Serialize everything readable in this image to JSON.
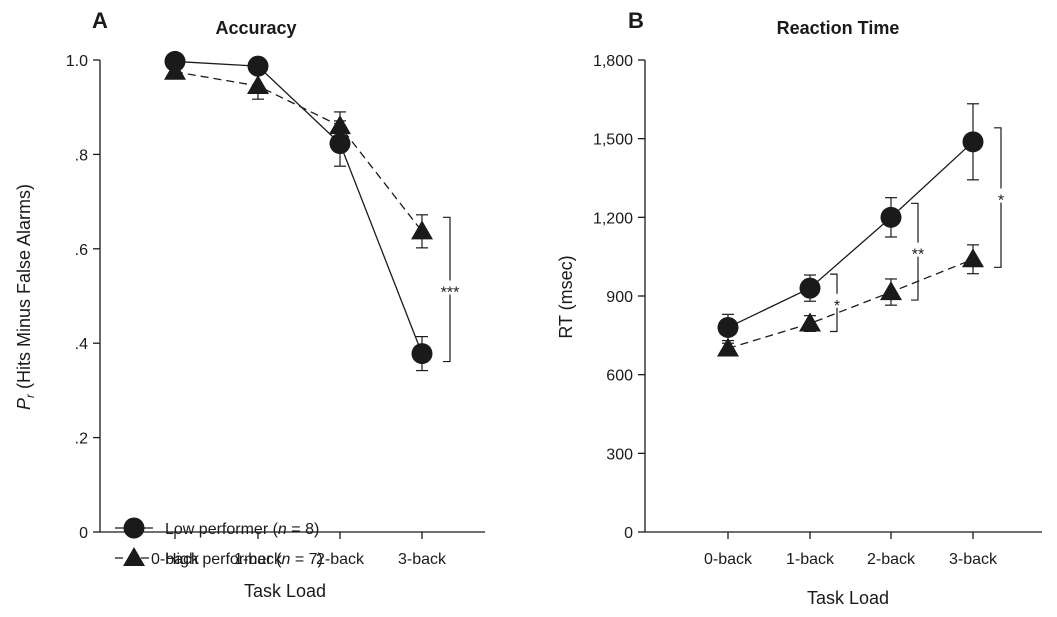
{
  "chart_data": [
    {
      "type": "line",
      "panel_label": "A",
      "title": "Accuracy",
      "xlabel": "Task Load",
      "ylabel_prefix": "P",
      "ylabel_subscript": "r",
      "ylabel_rest": " (Hits Minus False Alarms)",
      "categories": [
        "0-back",
        "1-back",
        "2-back",
        "3-back"
      ],
      "yticks": [
        "0",
        ".2",
        ".4",
        ".6",
        ".8",
        "1.0"
      ],
      "ylim": [
        0,
        1.0
      ],
      "ytick_values": [
        0,
        0.2,
        0.4,
        0.6,
        0.8,
        1.0
      ],
      "series": [
        {
          "name": "Low performer (n = 8)",
          "name_main": "Low performer (",
          "name_italic": "n",
          "name_end": " = 8)",
          "marker": "circle",
          "line": "solid",
          "values": [
            0.997,
            0.987,
            0.823,
            0.378
          ],
          "errors": [
            0.005,
            0.008,
            0.048,
            0.036
          ]
        },
        {
          "name": "High performer (n = 7)",
          "name_main": "High performer (",
          "name_italic": "n",
          "name_end": " = 7)",
          "marker": "triangle",
          "line": "dashed",
          "values": [
            0.975,
            0.945,
            0.86,
            0.637
          ],
          "errors": [
            0.006,
            0.028,
            0.03,
            0.035
          ]
        }
      ],
      "significance": [
        {
          "at": "3-back",
          "label": "***"
        }
      ],
      "legend_position": "bottom-left"
    },
    {
      "type": "line",
      "panel_label": "B",
      "title": "Reaction Time",
      "xlabel": "Task Load",
      "ylabel": "RT (msec)",
      "categories": [
        "0-back",
        "1-back",
        "2-back",
        "3-back"
      ],
      "yticks": [
        "0",
        "300",
        "600",
        "900",
        "1,200",
        "1,500",
        "1,800"
      ],
      "ylim": [
        0,
        1800
      ],
      "ytick_values": [
        0,
        300,
        600,
        900,
        1200,
        1500,
        1800
      ],
      "series": [
        {
          "name": "Low performer (n = 8)",
          "marker": "circle",
          "line": "solid",
          "values": [
            780,
            930,
            1200,
            1488
          ],
          "errors": [
            50,
            50,
            75,
            145
          ]
        },
        {
          "name": "High performer (n = 7)",
          "marker": "triangle",
          "line": "dashed",
          "values": [
            700,
            795,
            915,
            1040
          ],
          "errors": [
            20,
            30,
            50,
            55
          ]
        }
      ],
      "significance": [
        {
          "at": "1-back",
          "label": "*"
        },
        {
          "at": "2-back",
          "label": "**"
        },
        {
          "at": "3-back",
          "label": "*"
        }
      ]
    }
  ]
}
